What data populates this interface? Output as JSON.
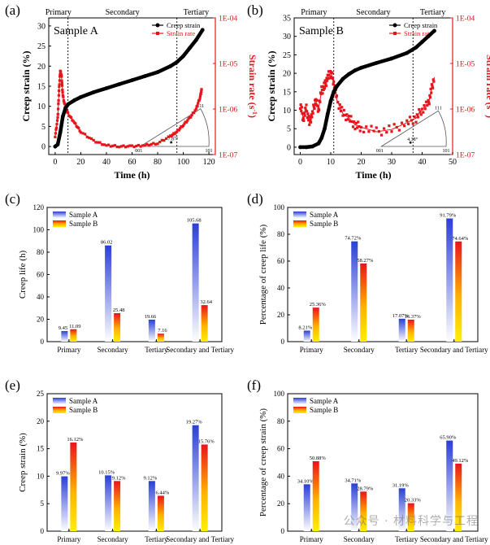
{
  "watermark": "公众号 · 材料科学与工程",
  "chart_data": [
    {
      "panel": "(a)",
      "type": "line",
      "sample_label": "Sample A",
      "stages": [
        "Primary",
        "Secondary",
        "Tertiary"
      ],
      "stage_boundaries_h": [
        10,
        95
      ],
      "xlabel": "Time (h)",
      "xlim": [
        -5,
        125
      ],
      "xticks": [
        0,
        20,
        40,
        60,
        80,
        100,
        120
      ],
      "ylabel": "Creep strain (%)",
      "ylim": [
        -2,
        32
      ],
      "yticks": [
        0,
        5,
        10,
        15,
        20,
        25,
        30
      ],
      "y2label": "Strain rate (s",
      "y2label_sup": "-1",
      "y2label_close": ")",
      "y2ticks": [
        "1E-07",
        "1E-06",
        "1E-05",
        "1E-04"
      ],
      "y2lim_log": [
        -7,
        -4
      ],
      "legend": [
        "Creep strain",
        "Strain rate"
      ],
      "legend_position": "top-right",
      "triangle_labels": [
        "001",
        "7.87°",
        "111",
        "101"
      ],
      "series": [
        {
          "name": "Creep strain",
          "color": "#000000",
          "x": [
            0,
            2,
            4,
            6,
            8,
            10,
            15,
            20,
            30,
            40,
            50,
            60,
            70,
            80,
            90,
            95,
            100,
            105,
            110,
            115
          ],
          "y": [
            0,
            0.5,
            3.5,
            7.5,
            9.5,
            10.5,
            11.5,
            12.3,
            13.5,
            14.5,
            15.5,
            16.5,
            17.5,
            18.5,
            20,
            21,
            22.5,
            24.5,
            26.5,
            29
          ]
        },
        {
          "name": "Strain rate",
          "color": "#e8141c",
          "x": [
            0,
            2,
            3,
            4,
            5,
            6,
            8,
            10,
            15,
            20,
            30,
            40,
            50,
            60,
            70,
            80,
            90,
            95,
            100,
            105,
            110,
            113,
            114.5
          ],
          "y_log10": [
            -6.6,
            -6.2,
            -5.6,
            -5.15,
            -5.3,
            -5.7,
            -6.0,
            -6.1,
            -6.3,
            -6.5,
            -6.7,
            -6.8,
            -6.82,
            -6.82,
            -6.8,
            -6.75,
            -6.6,
            -6.5,
            -6.35,
            -6.2,
            -6.0,
            -5.75,
            -5.55
          ]
        }
      ]
    },
    {
      "panel": "(b)",
      "type": "line",
      "sample_label": "Sample B",
      "stages": [
        "Primary",
        "Secondary",
        "Tertiary"
      ],
      "stage_boundaries_h": [
        11,
        37
      ],
      "xlabel": "Time (h)",
      "xlim": [
        -2,
        50
      ],
      "xticks": [
        0,
        10,
        20,
        30,
        40,
        50
      ],
      "ylabel": "Creep strain (%)",
      "ylim": [
        -2,
        35
      ],
      "yticks": [
        0,
        5,
        10,
        15,
        20,
        25,
        30,
        35
      ],
      "y2label": "Strain rate (s",
      "y2label_sup": "-1",
      "y2label_close": ")",
      "y2ticks": [
        "1E-07",
        "1E-06",
        "1E-05",
        "1E-04"
      ],
      "y2lim_log": [
        -7,
        -4
      ],
      "legend": [
        "Creep strain",
        "Strain rate"
      ],
      "legend_position": "top-right",
      "triangle_labels": [
        "001",
        "4.38°",
        "111",
        "101"
      ],
      "series": [
        {
          "name": "Creep strain",
          "color": "#000000",
          "x": [
            0,
            2,
            4,
            6,
            7,
            8,
            9,
            10,
            11,
            12,
            14,
            16,
            18,
            20,
            25,
            30,
            35,
            38,
            40,
            42,
            44
          ],
          "y": [
            0,
            0,
            0.2,
            1,
            2.5,
            5,
            9,
            12.5,
            15,
            16.5,
            18.5,
            19.8,
            20.8,
            21.5,
            22.8,
            24,
            25.5,
            27,
            28.5,
            30,
            31.5
          ]
        },
        {
          "name": "Strain rate",
          "color": "#e8141c",
          "x": [
            0,
            1,
            2,
            3,
            4,
            5,
            6,
            7,
            8,
            9,
            10,
            11,
            12,
            14,
            16,
            18,
            20,
            25,
            30,
            35,
            38,
            40,
            42,
            43,
            44
          ],
          "y_log10": [
            -5.9,
            -6.2,
            -6.0,
            -6.3,
            -6.1,
            -5.8,
            -6.0,
            -5.6,
            -5.5,
            -5.3,
            -5.2,
            -5.4,
            -5.8,
            -6.1,
            -6.2,
            -6.35,
            -6.4,
            -6.5,
            -6.45,
            -6.3,
            -6.2,
            -6.0,
            -5.9,
            -5.6,
            -5.3
          ]
        }
      ]
    },
    {
      "panel": "(c)",
      "type": "bar",
      "ylabel": "Creep life (h)",
      "ylim": [
        0,
        120
      ],
      "yticks": [
        0,
        20,
        40,
        60,
        80,
        100,
        120
      ],
      "categories": [
        "Primary",
        "Secondary",
        "Tertiary",
        "Secondary and Tertiary"
      ],
      "legend_position": "top-left",
      "series": [
        {
          "name": "Sample A",
          "values": [
            9.45,
            86.02,
            19.66,
            105.68
          ],
          "labels": [
            "9.45",
            "86.02",
            "19.66",
            "105.68"
          ]
        },
        {
          "name": "Sample B",
          "values": [
            11.09,
            25.48,
            7.16,
            32.64
          ],
          "labels": [
            "11.09",
            "25.48",
            "7.16",
            "32.64"
          ]
        }
      ]
    },
    {
      "panel": "(d)",
      "type": "bar",
      "ylabel": "Percentage of creep life (%)",
      "ylim": [
        0,
        100
      ],
      "yticks": [
        0,
        20,
        40,
        60,
        80,
        100
      ],
      "categories": [
        "Primary",
        "Secondary",
        "Tertiary",
        "Secondary and Tertiary"
      ],
      "legend_position": "top-left",
      "series": [
        {
          "name": "Sample A",
          "values": [
            8.21,
            74.72,
            17.07,
            91.79
          ],
          "labels": [
            "8.21%",
            "74.72%",
            "17.07%",
            "91.79%"
          ]
        },
        {
          "name": "Sample B",
          "values": [
            25.36,
            58.27,
            16.37,
            74.64
          ],
          "labels": [
            "25.36%",
            "58.27%",
            "16.37%",
            "74.64%"
          ]
        }
      ]
    },
    {
      "panel": "(e)",
      "type": "bar",
      "ylabel": "Creep strain (%)",
      "ylim": [
        0,
        25
      ],
      "yticks": [
        0,
        5,
        10,
        15,
        20,
        25
      ],
      "categories": [
        "Primary",
        "Secondary",
        "Tertiary",
        "Secondary and Tertiary"
      ],
      "legend_position": "top-left",
      "series": [
        {
          "name": "Sample A",
          "values": [
            9.97,
            10.15,
            9.12,
            19.27
          ],
          "labels": [
            "9.97%",
            "10.15%",
            "9.12%",
            "19.27%"
          ]
        },
        {
          "name": "Sample B",
          "values": [
            16.12,
            9.12,
            6.44,
            15.76
          ],
          "labels": [
            "16.12%",
            "9.12%",
            "6.44%",
            "15.76%"
          ]
        }
      ]
    },
    {
      "panel": "(f)",
      "type": "bar",
      "ylabel": "Percentage of creep strain (%)",
      "ylim": [
        0,
        100
      ],
      "yticks": [
        0,
        20,
        40,
        60,
        80,
        100
      ],
      "categories": [
        "Primary",
        "Secondary",
        "Tertiary",
        "Secondary and Tertiary"
      ],
      "legend_position": "top-left",
      "series": [
        {
          "name": "Sample A",
          "values": [
            34.1,
            34.71,
            31.19,
            65.9
          ],
          "labels": [
            "34.10%",
            "34.71%",
            "31.19%",
            "65.90%"
          ]
        },
        {
          "name": "Sample B",
          "values": [
            50.88,
            28.79,
            20.33,
            49.12
          ],
          "labels": [
            "50.88%",
            "28.79%",
            "20.33%",
            "49.12%"
          ]
        }
      ]
    }
  ]
}
